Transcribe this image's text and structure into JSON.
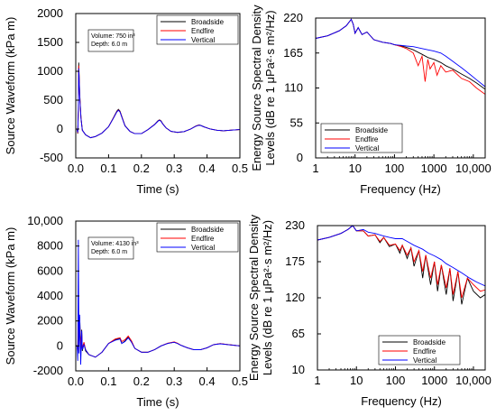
{
  "chart_data": [
    {
      "type": "line",
      "panel": "top-left",
      "xlabel": "Time (s)",
      "ylabel": "Source Waveform (kPa m)",
      "xlim": [
        0,
        0.5
      ],
      "ylim": [
        -500,
        2000
      ],
      "xticks": [
        0,
        0.1,
        0.2,
        0.3,
        0.4,
        0.5
      ],
      "xtick_labels": [
        "0.0",
        "0.1",
        "0.2",
        "0.3",
        "0.4",
        "0.5"
      ],
      "yticks": [
        -500,
        0,
        500,
        1000,
        1500,
        2000
      ],
      "ytick_labels": [
        "-500",
        "0",
        "500",
        "1000",
        "1500",
        "2000"
      ],
      "annotation": [
        "Volume: 750 in³",
        "Depth: 6.0 m"
      ],
      "legend_position": "top-right",
      "series": [
        {
          "name": "Broadside",
          "color": "#000000",
          "x": [
            0,
            0.004,
            0.006,
            0.008,
            0.009,
            0.01,
            0.012,
            0.016,
            0.02,
            0.03,
            0.045,
            0.06,
            0.08,
            0.1,
            0.115,
            0.125,
            0.13,
            0.135,
            0.14,
            0.15,
            0.165,
            0.18,
            0.2,
            0.22,
            0.24,
            0.25,
            0.255,
            0.26,
            0.265,
            0.275,
            0.29,
            0.31,
            0.33,
            0.35,
            0.365,
            0.375,
            0.38,
            0.39,
            0.41,
            0.43,
            0.45,
            0.47,
            0.5
          ],
          "y": [
            0,
            0,
            -80,
            350,
            1150,
            1000,
            600,
            200,
            -20,
            -100,
            -150,
            -130,
            -70,
            40,
            200,
            310,
            340,
            310,
            220,
            60,
            -40,
            -80,
            -80,
            -10,
            80,
            140,
            160,
            140,
            90,
            20,
            -40,
            -60,
            -45,
            0,
            50,
            70,
            65,
            40,
            0,
            -20,
            -30,
            -20,
            -10
          ]
        },
        {
          "name": "Endfire",
          "color": "#ff0000",
          "x": [
            0,
            0.004,
            0.006,
            0.008,
            0.009,
            0.01,
            0.012,
            0.016,
            0.02,
            0.03,
            0.045,
            0.06,
            0.08,
            0.1,
            0.115,
            0.125,
            0.13,
            0.135,
            0.14,
            0.15,
            0.165,
            0.18,
            0.2,
            0.22,
            0.24,
            0.25,
            0.255,
            0.26,
            0.265,
            0.275,
            0.29,
            0.31,
            0.33,
            0.35,
            0.365,
            0.375,
            0.38,
            0.39,
            0.41,
            0.43,
            0.45,
            0.47,
            0.5
          ],
          "y": [
            0,
            0,
            -70,
            330,
            1100,
            960,
            580,
            190,
            -20,
            -100,
            -150,
            -130,
            -70,
            40,
            195,
            300,
            330,
            300,
            215,
            55,
            -40,
            -80,
            -80,
            -10,
            78,
            136,
            155,
            136,
            88,
            20,
            -40,
            -58,
            -44,
            0,
            48,
            68,
            63,
            38,
            0,
            -20,
            -30,
            -20,
            -10
          ]
        },
        {
          "name": "Vertical",
          "color": "#0000ff",
          "x": [
            0,
            0.004,
            0.006,
            0.008,
            0.009,
            0.01,
            0.012,
            0.016,
            0.02,
            0.03,
            0.045,
            0.06,
            0.08,
            0.1,
            0.115,
            0.125,
            0.13,
            0.135,
            0.14,
            0.15,
            0.165,
            0.18,
            0.2,
            0.22,
            0.24,
            0.25,
            0.255,
            0.26,
            0.265,
            0.275,
            0.29,
            0.31,
            0.33,
            0.35,
            0.365,
            0.375,
            0.38,
            0.39,
            0.41,
            0.43,
            0.45,
            0.47,
            0.5
          ],
          "y": [
            0,
            0,
            -60,
            300,
            1050,
            930,
            560,
            180,
            -20,
            -100,
            -150,
            -130,
            -70,
            40,
            190,
            295,
            325,
            295,
            210,
            55,
            -40,
            -80,
            -80,
            -10,
            76,
            133,
            152,
            133,
            86,
            20,
            -40,
            -57,
            -43,
            0,
            47,
            66,
            62,
            37,
            0,
            -20,
            -30,
            -20,
            -10
          ]
        }
      ]
    },
    {
      "type": "line",
      "panel": "top-right",
      "xlabel": "Frequency (Hz)",
      "ylabel": "Energy Source Spectral Density Levels (dB re 1 μPa²·s m²/Hz)",
      "xscale": "log",
      "xlim": [
        1,
        20000
      ],
      "ylim": [
        0,
        220
      ],
      "xticks": [
        1,
        10,
        100,
        1000,
        10000
      ],
      "xtick_labels": [
        "1",
        "10",
        "100",
        "1000",
        "10,000"
      ],
      "yticks": [
        0,
        55,
        110,
        165,
        220
      ],
      "ytick_labels": [
        "0",
        "55",
        "110",
        "165",
        "220"
      ],
      "legend_position": "bottom-left",
      "series": [
        {
          "name": "Broadside",
          "color": "#000000",
          "x": [
            1,
            2,
            4,
            6,
            8,
            9,
            10,
            12,
            15,
            20,
            30,
            50,
            80,
            100,
            150,
            200,
            300,
            500,
            700,
            1000,
            1500,
            2000,
            3000,
            5000,
            8000,
            12000,
            20000
          ],
          "y": [
            188,
            192,
            200,
            208,
            218,
            210,
            196,
            205,
            194,
            198,
            186,
            182,
            180,
            178,
            176,
            174,
            170,
            163,
            158,
            155,
            150,
            145,
            140,
            132,
            125,
            118,
            108
          ]
        },
        {
          "name": "Endfire",
          "color": "#ff0000",
          "x": [
            1,
            2,
            4,
            6,
            8,
            9,
            10,
            12,
            15,
            20,
            30,
            50,
            80,
            100,
            150,
            200,
            300,
            400,
            500,
            600,
            700,
            800,
            1000,
            1200,
            1500,
            2000,
            3000,
            5000,
            8000,
            12000,
            20000
          ],
          "y": [
            188,
            192,
            200,
            208,
            218,
            210,
            196,
            205,
            194,
            198,
            186,
            182,
            180,
            178,
            175,
            172,
            165,
            145,
            160,
            120,
            155,
            140,
            150,
            130,
            145,
            135,
            138,
            125,
            120,
            110,
            100
          ]
        },
        {
          "name": "Vertical",
          "color": "#0000ff",
          "x": [
            1,
            2,
            4,
            6,
            8,
            9,
            10,
            12,
            15,
            20,
            30,
            50,
            80,
            100,
            150,
            200,
            300,
            500,
            700,
            1000,
            1500,
            2000,
            3000,
            5000,
            8000,
            12000,
            20000
          ],
          "y": [
            188,
            192,
            200,
            208,
            218,
            210,
            196,
            205,
            194,
            198,
            186,
            182,
            180,
            178,
            177,
            176,
            175,
            172,
            170,
            168,
            165,
            160,
            152,
            142,
            132,
            123,
            112
          ]
        }
      ]
    },
    {
      "type": "line",
      "panel": "bottom-left",
      "xlabel": "Time (s)",
      "ylabel": "Source Waveform (kPa m)",
      "xlim": [
        0,
        0.5
      ],
      "ylim": [
        -2000,
        10000
      ],
      "xticks": [
        0,
        0.1,
        0.2,
        0.3,
        0.4,
        0.5
      ],
      "xtick_labels": [
        "0.0",
        "0.1",
        "0.2",
        "0.3",
        "0.4",
        "0.5"
      ],
      "yticks": [
        -2000,
        0,
        2000,
        4000,
        6000,
        8000,
        10000
      ],
      "ytick_labels": [
        "-2000",
        "0",
        "2000",
        "4000",
        "6000",
        "8000",
        "10,000"
      ],
      "annotation": [
        "Volume: 4130 in³",
        "Depth: 6.0 m"
      ],
      "legend_position": "top-right",
      "series": [
        {
          "name": "Broadside",
          "color": "#000000",
          "x": [
            0,
            0.004,
            0.006,
            0.008,
            0.01,
            0.012,
            0.015,
            0.018,
            0.02,
            0.025,
            0.03,
            0.04,
            0.06,
            0.08,
            0.1,
            0.12,
            0.135,
            0.14,
            0.15,
            0.16,
            0.17,
            0.18,
            0.2,
            0.22,
            0.24,
            0.26,
            0.28,
            0.3,
            0.31,
            0.32,
            0.34,
            0.36,
            0.38,
            0.4,
            0.42,
            0.44,
            0.46,
            0.5
          ],
          "y": [
            0,
            0,
            -600,
            2800,
            400,
            2300,
            -300,
            1300,
            -400,
            200,
            -400,
            -700,
            -900,
            -500,
            200,
            500,
            600,
            200,
            400,
            700,
            300,
            -200,
            -500,
            -500,
            -300,
            0,
            200,
            300,
            200,
            50,
            -150,
            -300,
            -300,
            -150,
            100,
            180,
            120,
            0
          ]
        },
        {
          "name": "Endfire",
          "color": "#ff0000",
          "x": [
            0,
            0.004,
            0.006,
            0.008,
            0.01,
            0.012,
            0.015,
            0.018,
            0.02,
            0.025,
            0.03,
            0.04,
            0.06,
            0.08,
            0.1,
            0.12,
            0.135,
            0.14,
            0.15,
            0.16,
            0.17,
            0.18,
            0.2,
            0.22,
            0.24,
            0.26,
            0.28,
            0.3,
            0.31,
            0.32,
            0.34,
            0.36,
            0.38,
            0.4,
            0.42,
            0.44,
            0.46,
            0.5
          ],
          "y": [
            0,
            0,
            -400,
            2200,
            800,
            1800,
            0,
            1000,
            -200,
            300,
            -300,
            -700,
            -900,
            -500,
            200,
            550,
            650,
            350,
            500,
            800,
            400,
            -200,
            -500,
            -500,
            -300,
            0,
            220,
            320,
            220,
            60,
            -150,
            -300,
            -300,
            -150,
            100,
            190,
            120,
            0
          ]
        },
        {
          "name": "Vertical",
          "color": "#0000ff",
          "x": [
            0,
            0.004,
            0.006,
            0.008,
            0.01,
            0.012,
            0.015,
            0.018,
            0.02,
            0.025,
            0.03,
            0.04,
            0.06,
            0.08,
            0.1,
            0.12,
            0.135,
            0.14,
            0.15,
            0.16,
            0.17,
            0.18,
            0.2,
            0.22,
            0.24,
            0.26,
            0.28,
            0.3,
            0.31,
            0.32,
            0.34,
            0.36,
            0.38,
            0.4,
            0.42,
            0.44,
            0.46,
            0.5
          ],
          "y": [
            0,
            0,
            -1200,
            8500,
            -600,
            2500,
            -1500,
            1200,
            -300,
            100,
            -300,
            -700,
            -900,
            -500,
            200,
            450,
            550,
            200,
            350,
            650,
            300,
            -200,
            -500,
            -500,
            -300,
            0,
            200,
            290,
            200,
            50,
            -150,
            -300,
            -300,
            -150,
            100,
            170,
            110,
            0
          ]
        }
      ]
    },
    {
      "type": "line",
      "panel": "bottom-right",
      "xlabel": "Frequency (Hz)",
      "ylabel": "Energy Source Spectral Density Levels (dB re 1 μPa²·s m²/Hz)",
      "xscale": "log",
      "xlim": [
        1,
        20000
      ],
      "ylim": [
        10,
        230
      ],
      "xticks": [
        1,
        10,
        100,
        1000,
        10000
      ],
      "xtick_labels": [
        "1",
        "10",
        "100",
        "1000",
        "10,000"
      ],
      "yticks": [
        10,
        65,
        120,
        175,
        230
      ],
      "ytick_labels": [
        "10",
        "65",
        "120",
        "175",
        "230"
      ],
      "legend_position": "bottom-right",
      "series": [
        {
          "name": "Broadside",
          "color": "#000000",
          "x": [
            1,
            2,
            4,
            6,
            8,
            10,
            15,
            20,
            30,
            40,
            50,
            70,
            100,
            130,
            150,
            200,
            250,
            300,
            400,
            500,
            600,
            800,
            1000,
            1200,
            1500,
            2000,
            2500,
            3000,
            4000,
            5000,
            7000,
            10000,
            15000,
            20000
          ],
          "y": [
            208,
            212,
            218,
            224,
            230,
            222,
            222,
            214,
            216,
            204,
            212,
            198,
            202,
            188,
            200,
            180,
            196,
            168,
            192,
            150,
            185,
            140,
            175,
            130,
            170,
            125,
            165,
            115,
            160,
            110,
            150,
            130,
            120,
            125
          ]
        },
        {
          "name": "Endfire",
          "color": "#ff0000",
          "x": [
            1,
            2,
            4,
            6,
            8,
            10,
            15,
            20,
            30,
            40,
            50,
            70,
            100,
            130,
            150,
            200,
            250,
            300,
            400,
            500,
            600,
            800,
            1000,
            1200,
            1500,
            2000,
            2500,
            3000,
            4000,
            5000,
            7000,
            10000,
            15000,
            20000
          ],
          "y": [
            208,
            212,
            218,
            224,
            230,
            222,
            222,
            214,
            216,
            206,
            212,
            200,
            202,
            192,
            200,
            185,
            196,
            175,
            192,
            160,
            185,
            150,
            175,
            140,
            170,
            135,
            165,
            125,
            160,
            120,
            150,
            140,
            130,
            132
          ]
        },
        {
          "name": "Vertical",
          "color": "#0000ff",
          "x": [
            1,
            2,
            4,
            6,
            8,
            10,
            15,
            20,
            30,
            50,
            70,
            100,
            150,
            200,
            300,
            500,
            700,
            1000,
            1500,
            2000,
            3000,
            5000,
            8000,
            12000,
            20000
          ],
          "y": [
            208,
            212,
            218,
            224,
            230,
            222,
            224,
            220,
            218,
            214,
            212,
            210,
            210,
            206,
            200,
            194,
            188,
            184,
            178,
            172,
            166,
            158,
            150,
            144,
            138
          ]
        }
      ]
    }
  ]
}
